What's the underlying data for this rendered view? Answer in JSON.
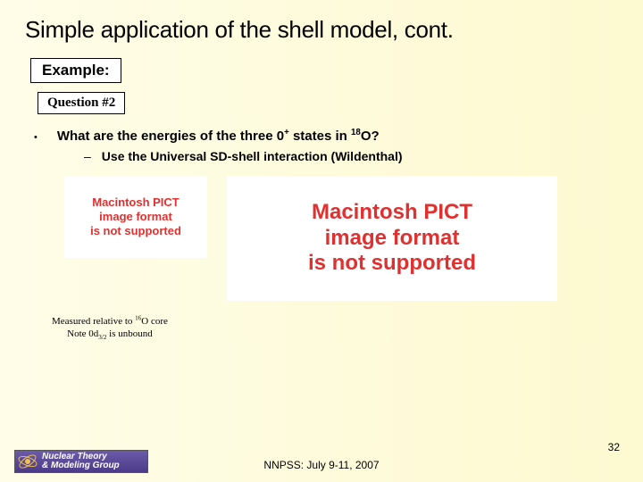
{
  "title": "Simple application of the shell model, cont.",
  "example_label": "Example:",
  "question_label": "Question #2",
  "bullet": {
    "pre": "What are the energies of the three 0",
    "sup1": "+",
    "mid": " states in ",
    "sup2": "18",
    "post": "O?"
  },
  "subbullet": "Use the Universal SD-shell interaction (Wildenthal)",
  "pict_small": {
    "l1": "Macintosh PICT",
    "l2": "image format",
    "l3": "is not supported"
  },
  "pict_large": {
    "l1": "Macintosh PICT",
    "l2": "image format",
    "l3": "is not supported"
  },
  "note": {
    "line1_pre": "Measured relative to ",
    "line1_sup": "16",
    "line1_post": "O core",
    "line2_pre": "Note 0d",
    "line2_sub": "3/2",
    "line2_post": " is unbound"
  },
  "footer": "NNPSS: July 9-11, 2007",
  "page_num": "32",
  "logo": {
    "line1": "Nuclear Theory",
    "line2": "& Modeling Group"
  },
  "colors": {
    "pict_text": "#e03030",
    "logo_bg_top": "#6b5ba8",
    "logo_bg_bottom": "#4a3a88",
    "logo_ring": "#f3c24a",
    "bg_left": "#fffde8",
    "bg_right": "#fdf9d0"
  }
}
